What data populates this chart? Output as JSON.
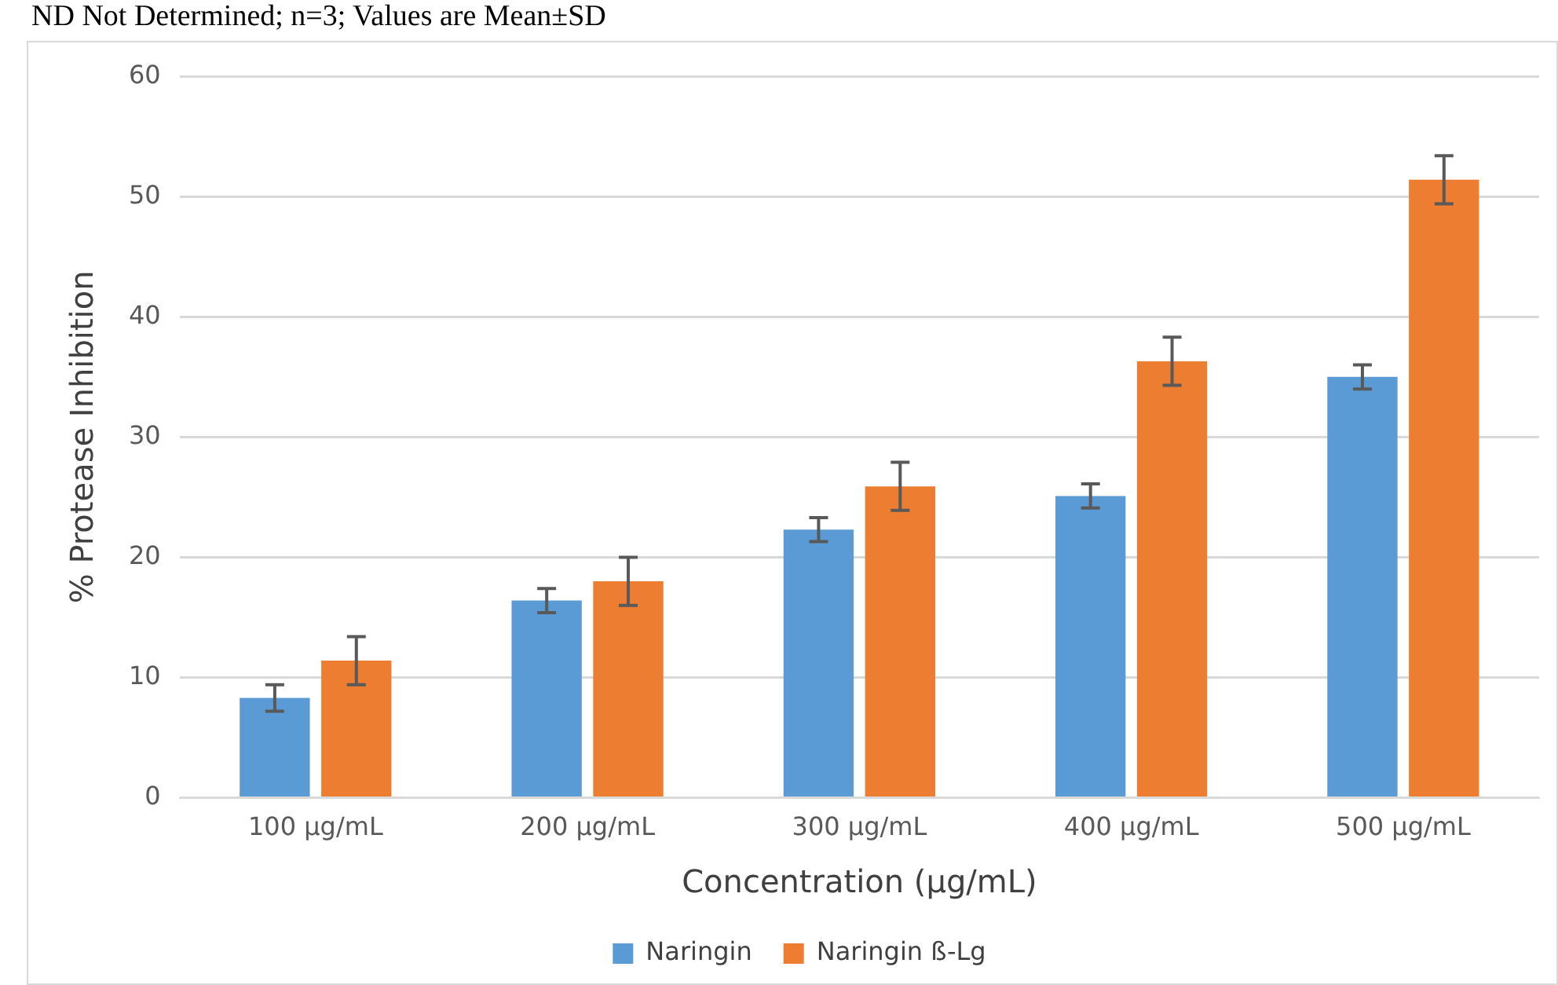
{
  "chart_data": {
    "type": "bar",
    "xlabel": "Concentration (µg/mL)",
    "ylabel": "% Protease Inhibition",
    "annotations": [
      "ND Not Determined; n=3; Values are Mean±SD"
    ],
    "categories": [
      "100 µg/mL",
      "200 µg/mL",
      "300 µg/mL",
      "400 µg/mL",
      "500 µg/mL"
    ],
    "series": [
      {
        "name": "Naringin",
        "color": "#5b9bd5",
        "values": [
          8.3,
          16.4,
          22.3,
          25.1,
          35.0
        ],
        "errors": [
          1.1,
          1.0,
          1.0,
          1.0,
          1.0
        ]
      },
      {
        "name": "Naringin ß-Lg",
        "color": "#ed7d31",
        "values": [
          11.4,
          18.0,
          25.9,
          36.3,
          51.4
        ],
        "errors": [
          2.0,
          2.0,
          2.0,
          2.0,
          2.0
        ]
      }
    ],
    "ylim": [
      0,
      60
    ],
    "yticks": [
      0,
      10,
      20,
      30,
      40,
      50,
      60
    ],
    "grid": "y",
    "legend": "bottom"
  }
}
